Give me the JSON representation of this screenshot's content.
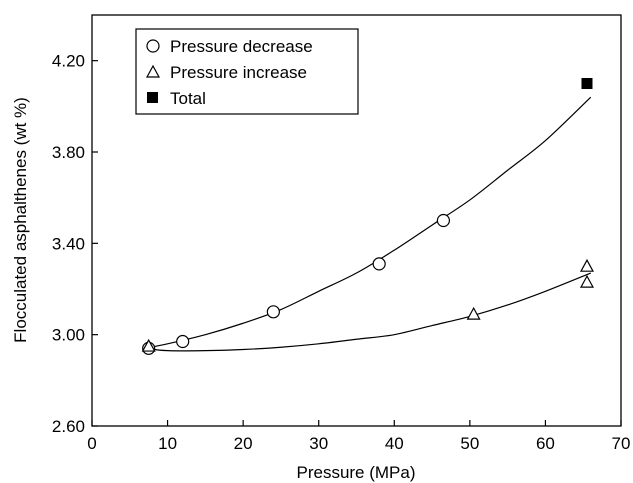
{
  "chart_data": {
    "type": "scatter",
    "title": "",
    "xlabel": "Pressure (MPa)",
    "ylabel": "Flocculated asphalthenes (wt %)",
    "xlim": [
      0,
      70
    ],
    "ylim": [
      2.6,
      4.4
    ],
    "xticks": [
      0,
      10,
      20,
      30,
      40,
      50,
      60,
      70
    ],
    "yticks": [
      2.6,
      3.0,
      3.4,
      3.8,
      4.2
    ],
    "xtick_labels": [
      "0",
      "10",
      "20",
      "30",
      "40",
      "50",
      "60",
      "70"
    ],
    "ytick_labels": [
      "2.60",
      "3.00",
      "3.40",
      "3.80",
      "4.20"
    ],
    "grid": false,
    "legend_position": "top-left",
    "series": [
      {
        "name": "Pressure decrease",
        "marker": "circle",
        "x": [
          7.5,
          12,
          24,
          38,
          46.5
        ],
        "y": [
          2.94,
          2.97,
          3.1,
          3.31,
          3.5
        ]
      },
      {
        "name": "Pressure increase",
        "marker": "triangle",
        "x": [
          7.5,
          50.5,
          65.5,
          65.5
        ],
        "y": [
          2.95,
          3.09,
          3.3,
          3.23
        ]
      },
      {
        "name": "Total",
        "marker": "square",
        "x": [
          65.5
        ],
        "y": [
          4.1
        ]
      }
    ],
    "fit_curves": [
      {
        "of": "Pressure decrease",
        "x": [
          7,
          10,
          15,
          20,
          25,
          30,
          35,
          40,
          45,
          50,
          55,
          60,
          66
        ],
        "y": [
          2.94,
          2.96,
          3.0,
          3.05,
          3.11,
          3.19,
          3.27,
          3.37,
          3.48,
          3.59,
          3.72,
          3.85,
          4.04
        ]
      },
      {
        "of": "Pressure increase",
        "x": [
          7,
          10,
          15,
          20,
          25,
          30,
          35,
          40,
          45,
          50,
          55,
          60,
          66
        ],
        "y": [
          2.94,
          2.93,
          2.93,
          2.935,
          2.945,
          2.96,
          2.98,
          3.0,
          3.04,
          3.08,
          3.13,
          3.19,
          3.27
        ]
      }
    ]
  }
}
